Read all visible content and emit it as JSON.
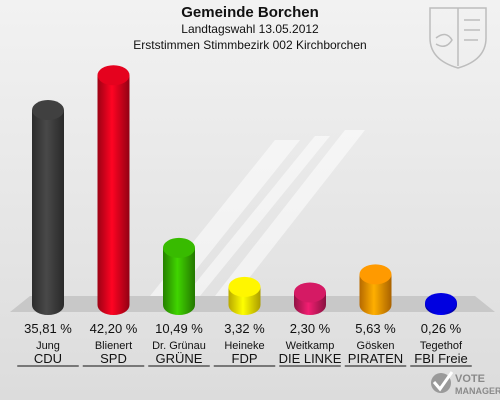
{
  "chart_data": {
    "type": "bar",
    "title": "Gemeinde Borchen",
    "subtitle": "Landtagswahl 13.05.2012",
    "subtitle2": "Erststimmen Stimmbezirk 002 Kirchborchen",
    "ylim": [
      0,
      45
    ],
    "categories": [
      "Jung",
      "Blienert",
      "Dr. Grünau",
      "Heineke",
      "Weitkamp",
      "Gösken",
      "Tegethof"
    ],
    "parties": [
      "CDU",
      "SPD",
      "GRÜNE",
      "FDP",
      "DIE LINKE",
      "PIRATEN",
      "FBI Freie"
    ],
    "values": [
      35.81,
      42.2,
      10.49,
      3.32,
      2.3,
      5.63,
      0.26
    ],
    "value_labels": [
      "35,81 %",
      "42,20 %",
      "10,49 %",
      "3,32 %",
      "2,30 %",
      "5,63 %",
      "0,26 %"
    ],
    "colors": [
      "#3a3a3a",
      "#d0021b",
      "#33aa00",
      "#f5e000",
      "#c2185b",
      "#f28c00",
      "#0000cc"
    ]
  },
  "branding": {
    "logo_text_1": "VOTE",
    "logo_text_2": "MANAGER"
  }
}
